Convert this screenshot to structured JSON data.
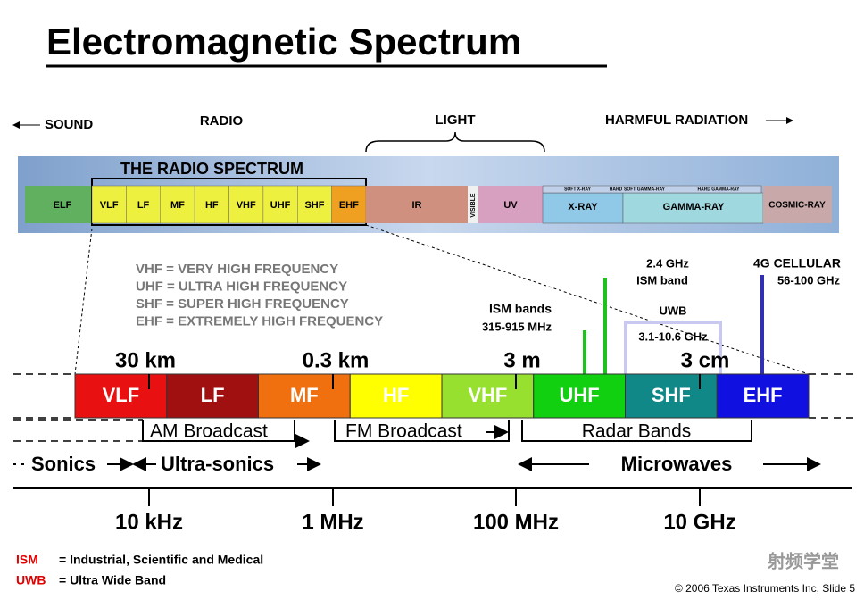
{
  "title": "Electromagnetic Spectrum",
  "top_labels": {
    "sound": "SOUND",
    "radio": "RADIO",
    "light": "LIGHT",
    "harmful": "HARMFUL RADIATION"
  },
  "spectrum_bar": {
    "title": "THE RADIO SPECTRUM",
    "elf": "ELF",
    "radio_bands": [
      "VLF",
      "LF",
      "MF",
      "HF",
      "VHF",
      "UHF",
      "SHF",
      "EHF"
    ],
    "ir": "IR",
    "visible": "VISIBLE",
    "uv": "UV",
    "xray": "X-RAY",
    "gamma": "GAMMA-RAY",
    "cosmic": "COSMIC-RAY",
    "sub_labels": [
      "SOFT X-RAY",
      "HARD",
      "SOFT GAMMA-RAY",
      "HARD GAMMA-RAY"
    ]
  },
  "abbreviations": [
    "VHF = VERY HIGH FREQUENCY",
    "UHF = ULTRA HIGH FREQUENCY",
    "SHF = SUPER HIGH FREQUENCY",
    "EHF = EXTREMELY HIGH FREQUENCY"
  ],
  "annotations": {
    "ism_1": "ISM bands",
    "ism_2": "315-915 MHz",
    "ism24_1": "2.4 GHz",
    "ism24_2": "ISM band",
    "uwb_1": "UWB",
    "uwb_2": "3.1-10.6 GHz",
    "cell_1": "4G CELLULAR",
    "cell_2": "56-100 GHz"
  },
  "wavelengths": [
    "30 km",
    "0.3 km",
    "3 m",
    "3 cm"
  ],
  "bands": [
    "VLF",
    "LF",
    "MF",
    "HF",
    "VHF",
    "UHF",
    "SHF",
    "EHF"
  ],
  "services": [
    "AM Broadcast",
    "FM Broadcast",
    "Radar Bands"
  ],
  "ranges": [
    "Sonics",
    "Ultra-sonics",
    "Microwaves"
  ],
  "frequencies": [
    "10 kHz",
    "1 MHz",
    "100 MHz",
    "10 GHz"
  ],
  "footnotes": [
    {
      "abbr": "ISM",
      "text": "= Industrial, Scientific and Medical"
    },
    {
      "abbr": "UWB",
      "text": "= Ultra Wide Band"
    }
  ],
  "copyright": "© 2006 Texas Instruments Inc, Slide 5",
  "watermark": "射频学堂"
}
